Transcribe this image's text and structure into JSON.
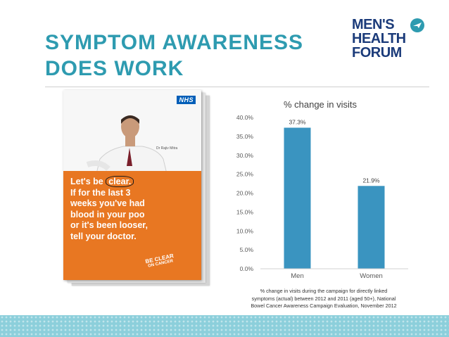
{
  "slide": {
    "title_lines": [
      "SYMPTOM AWARENESS",
      "DOES WORK"
    ],
    "logo_lines": [
      "MEN'S",
      "HEALTH",
      "FORUM"
    ],
    "accent_color": "#2e9bb0",
    "logo_color": "#1b3b7a",
    "band_color": "#8ccfdb"
  },
  "poster": {
    "nhs_label": "NHS",
    "doctor_name": "Dr Rajiv Mitra",
    "headline_first": "Let's be",
    "headline_clear": "clear.",
    "headline_lines": [
      "If for the last 3",
      "weeks you've had",
      "blood in your poo",
      "or it's been looser,",
      "tell your doctor."
    ],
    "badge_lines": [
      "BE CLEAR",
      "ON CANCER"
    ],
    "orange_color": "#e87722"
  },
  "chart_data": {
    "type": "bar",
    "title": "% change in visits",
    "categories": [
      "Men",
      "Women"
    ],
    "values": [
      37.3,
      21.9
    ],
    "data_labels": [
      "37.3%",
      "21.9%"
    ],
    "y_ticks": [
      "0.0%",
      "5.0%",
      "10.0%",
      "15.0%",
      "20.0%",
      "25.0%",
      "30.0%",
      "35.0%",
      "40.0%"
    ],
    "ylim": [
      0,
      40
    ],
    "grid": false,
    "legend": "none",
    "bar_color": "#3a94c0"
  },
  "caption": {
    "lines": [
      "% change in visits during the campaign for directly linked",
      "symptoms (actual) between 2012 and 2011 (aged 50+), National",
      "Bowel Cancer Awareness Campaign Evaluation, November 2012"
    ]
  }
}
